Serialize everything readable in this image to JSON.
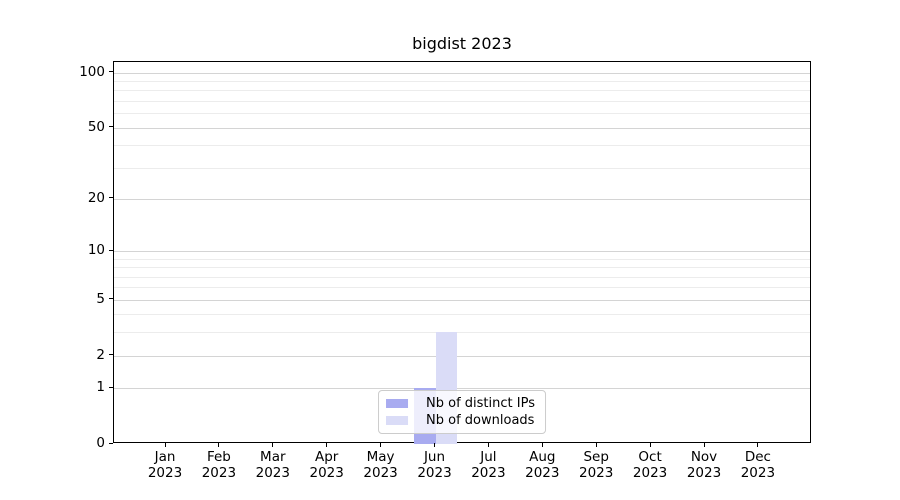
{
  "title": "bigdist 2023",
  "colors": {
    "distinct_ips": "#a8abf0",
    "downloads": "#dadcf7",
    "grid_major": "#d4d4d4",
    "grid_minor": "#ececec",
    "spine": "#000000",
    "text": "#000000",
    "legend_border": "#cccccc"
  },
  "chart_data": {
    "type": "bar",
    "title": "bigdist 2023",
    "categories": [
      "Jan",
      "Feb",
      "Mar",
      "Apr",
      "May",
      "Jun",
      "Jul",
      "Aug",
      "Sep",
      "Oct",
      "Nov",
      "Dec"
    ],
    "year": "2023",
    "series": [
      {
        "name": "Nb of distinct IPs",
        "color_key": "distinct_ips",
        "values": [
          0,
          0,
          0,
          0,
          0,
          1,
          0,
          0,
          0,
          0,
          0,
          0
        ]
      },
      {
        "name": "Nb of downloads",
        "color_key": "downloads",
        "values": [
          0,
          0,
          0,
          0,
          0,
          3,
          0,
          0,
          0,
          0,
          0,
          0
        ]
      }
    ],
    "yscale": "log10(1+y)",
    "yticks": [
      0,
      1,
      2,
      5,
      10,
      20,
      50,
      100
    ],
    "minor_yticks": [
      3,
      4,
      6,
      7,
      8,
      9,
      30,
      40,
      60,
      70,
      80,
      90
    ],
    "ylim": [
      0,
      114
    ],
    "xlabel": "",
    "ylabel": "",
    "grid": true,
    "legend_position": "lower center"
  }
}
